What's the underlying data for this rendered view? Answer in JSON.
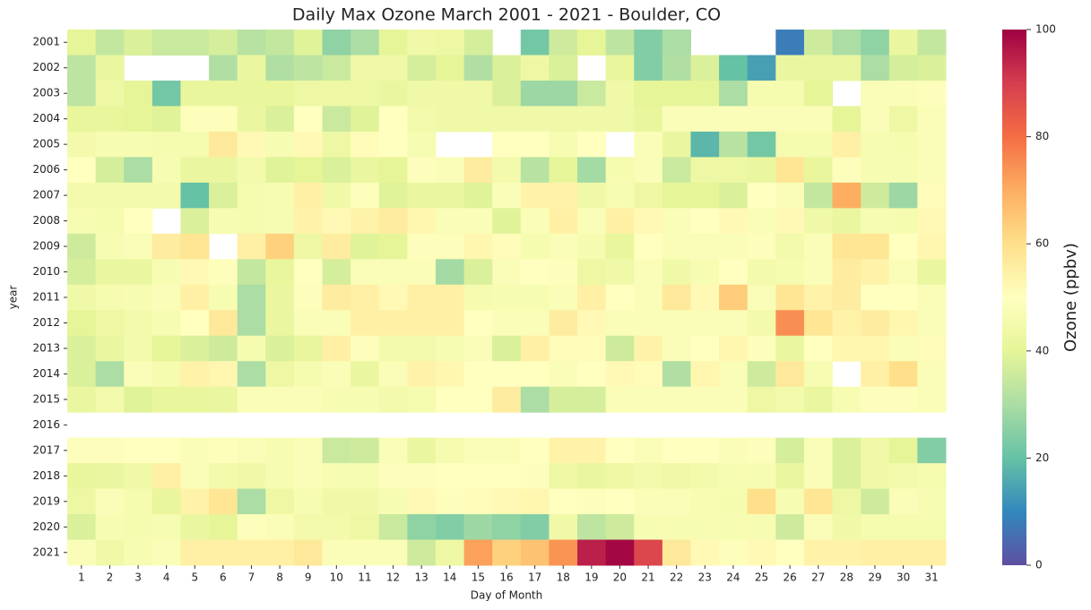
{
  "chart_data": {
    "type": "heatmap",
    "title": "Daily Max Ozone March 2001 - 2021 - Boulder, CO",
    "x_label": "Day of Month",
    "y_label": "year",
    "x": [
      "1",
      "2",
      "3",
      "4",
      "5",
      "6",
      "7",
      "8",
      "9",
      "10",
      "11",
      "12",
      "13",
      "14",
      "15",
      "16",
      "17",
      "18",
      "19",
      "20",
      "21",
      "22",
      "23",
      "24",
      "25",
      "26",
      "27",
      "28",
      "29",
      "30",
      "31"
    ],
    "y": [
      "2001",
      "2002",
      "2003",
      "2004",
      "2005",
      "2006",
      "2007",
      "2008",
      "2009",
      "2010",
      "2011",
      "2012",
      "2013",
      "2014",
      "2015",
      "2016",
      "2017",
      "2018",
      "2019",
      "2020",
      "2021"
    ],
    "values": [
      [
        40,
        34,
        38,
        35,
        35,
        37,
        32,
        34,
        39,
        26,
        30,
        40,
        44,
        43,
        37,
        null,
        22,
        36,
        40,
        33,
        24,
        30,
        null,
        null,
        null,
        8,
        36,
        30,
        26,
        42,
        34
      ],
      [
        33,
        42,
        null,
        null,
        null,
        31,
        42,
        31,
        33,
        35,
        44,
        44,
        37,
        40,
        31,
        38,
        43,
        38,
        null,
        41,
        24,
        31,
        38,
        20,
        14,
        42,
        42,
        42,
        30,
        37,
        38
      ],
      [
        33,
        43,
        40,
        22,
        41,
        41,
        41,
        41,
        43,
        43,
        43,
        42,
        44,
        44,
        44,
        38,
        28,
        28,
        35,
        44,
        40,
        40,
        40,
        30,
        46,
        46,
        40,
        null,
        48,
        48,
        49
      ],
      [
        41,
        41,
        40,
        39,
        49,
        49,
        42,
        38,
        50,
        35,
        39,
        50,
        45,
        44,
        44,
        44,
        44,
        44,
        44,
        44,
        41,
        48,
        48,
        48,
        48,
        48,
        48,
        40,
        48,
        43,
        48
      ],
      [
        45,
        47,
        47,
        46,
        46,
        57,
        52,
        47,
        52,
        43,
        51,
        50,
        47,
        null,
        null,
        50,
        50,
        47,
        50,
        null,
        48,
        42,
        18,
        32,
        22,
        46,
        46,
        55,
        47,
        46,
        48
      ],
      [
        50,
        37,
        30,
        47,
        42,
        42,
        45,
        39,
        40,
        38,
        42,
        40,
        49,
        48,
        56,
        45,
        32,
        40,
        29,
        46,
        48,
        35,
        43,
        43,
        42,
        58,
        41,
        49,
        47,
        47,
        48
      ],
      [
        45,
        45,
        45,
        45,
        20,
        38,
        46,
        47,
        55,
        44,
        49,
        39,
        42,
        42,
        39,
        48,
        54,
        54,
        44,
        47,
        43,
        40,
        40,
        38,
        50,
        48,
        34,
        70,
        36,
        28,
        51
      ],
      [
        47,
        46,
        50,
        null,
        38,
        47,
        46,
        47,
        54,
        52,
        54,
        56,
        53,
        48,
        48,
        39,
        48,
        55,
        48,
        55,
        52,
        48,
        50,
        52,
        48,
        52,
        44,
        42,
        47,
        46,
        52
      ],
      [
        36,
        47,
        48,
        56,
        58,
        null,
        55,
        63,
        43,
        56,
        39,
        40,
        49,
        49,
        53,
        51,
        46,
        48,
        46,
        41,
        50,
        48,
        48,
        48,
        49,
        45,
        48,
        58,
        58,
        50,
        53
      ],
      [
        37,
        42,
        42,
        47,
        52,
        49,
        34,
        41,
        50,
        37,
        48,
        48,
        48,
        29,
        38,
        48,
        50,
        49,
        43,
        44,
        48,
        44,
        47,
        50,
        45,
        46,
        48,
        56,
        54,
        48,
        42
      ],
      [
        44,
        46,
        47,
        48,
        55,
        47,
        30,
        42,
        49,
        56,
        55,
        52,
        55,
        55,
        46,
        47,
        47,
        48,
        55,
        50,
        48,
        57,
        52,
        64,
        48,
        58,
        54,
        56,
        50,
        50,
        48
      ],
      [
        40,
        43,
        45,
        47,
        50,
        57,
        30,
        42,
        48,
        48,
        55,
        55,
        55,
        55,
        50,
        48,
        48,
        56,
        52,
        48,
        48,
        48,
        48,
        48,
        45,
        75,
        58,
        54,
        56,
        53,
        48
      ],
      [
        38,
        42,
        45,
        40,
        38,
        36,
        46,
        38,
        41,
        55,
        49,
        45,
        45,
        47,
        48,
        38,
        55,
        51,
        51,
        36,
        54,
        48,
        50,
        53,
        49,
        42,
        50,
        53,
        53,
        48,
        51
      ],
      [
        38,
        30,
        48,
        46,
        54,
        53,
        30,
        43,
        46,
        48,
        42,
        48,
        54,
        53,
        50,
        50,
        50,
        48,
        50,
        52,
        51,
        31,
        53,
        48,
        36,
        57,
        47,
        null,
        55,
        60,
        48
      ],
      [
        42,
        45,
        39,
        41,
        41,
        42,
        48,
        48,
        48,
        47,
        47,
        45,
        46,
        50,
        50,
        56,
        30,
        37,
        37,
        48,
        48,
        48,
        48,
        48,
        43,
        45,
        42,
        47,
        49,
        49,
        48
      ],
      [
        null,
        null,
        null,
        null,
        null,
        null,
        null,
        null,
        null,
        null,
        null,
        null,
        null,
        null,
        null,
        null,
        null,
        null,
        null,
        null,
        null,
        null,
        null,
        null,
        null,
        null,
        null,
        null,
        null,
        null,
        null
      ],
      [
        49,
        49,
        50,
        50,
        48,
        49,
        48,
        47,
        48,
        35,
        36,
        48,
        42,
        46,
        48,
        48,
        50,
        54,
        54,
        50,
        48,
        50,
        50,
        48,
        49,
        37,
        48,
        38,
        44,
        40,
        24
      ],
      [
        41,
        42,
        44,
        55,
        48,
        45,
        44,
        47,
        48,
        47,
        47,
        49,
        49,
        50,
        50,
        50,
        49,
        43,
        42,
        43,
        45,
        44,
        45,
        47,
        47,
        42,
        48,
        38,
        44,
        45,
        46
      ],
      [
        43,
        48,
        46,
        41,
        54,
        58,
        30,
        43,
        47,
        44,
        44,
        47,
        52,
        49,
        51,
        52,
        53,
        50,
        49,
        50,
        48,
        48,
        47,
        46,
        60,
        47,
        58,
        43,
        36,
        48,
        47
      ],
      [
        38,
        47,
        46,
        47,
        42,
        40,
        49,
        48,
        45,
        45,
        43,
        35,
        26,
        24,
        28,
        26,
        24,
        44,
        33,
        36,
        47,
        47,
        47,
        47,
        47,
        36,
        48,
        44,
        46,
        46,
        46
      ],
      [
        48,
        44,
        47,
        48,
        55,
        55,
        55,
        55,
        57,
        48,
        48,
        48,
        36,
        43,
        72,
        63,
        66,
        74,
        95,
        99,
        88,
        57,
        52,
        49,
        52,
        50,
        54,
        54,
        55,
        55,
        55
      ]
    ],
    "colormap": "Spectral_r",
    "colorbar": {
      "label": "Ozone (ppbv)",
      "lim": [
        0,
        100
      ],
      "ticks": [
        0,
        20,
        40,
        60,
        80,
        100
      ]
    }
  }
}
